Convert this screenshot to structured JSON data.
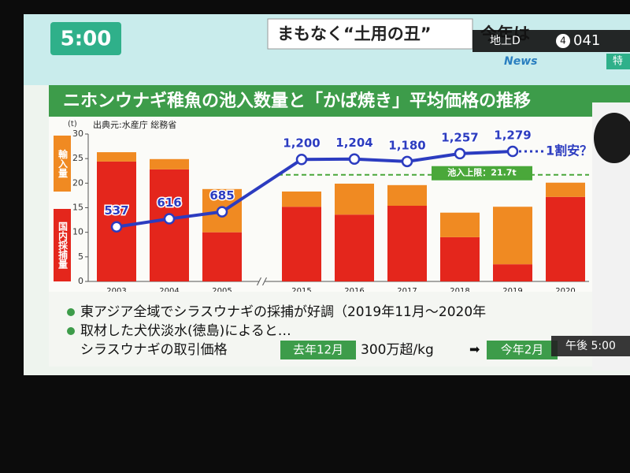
{
  "screen": {
    "clock": "5:00",
    "headline": "まもなく“土用の丑”",
    "headline_tail": "今年は",
    "channel": "地上D",
    "channel_number": "4",
    "channel_code": "041",
    "program": "News",
    "corner": "特",
    "time_badge": "午後 5:00"
  },
  "chart_data": {
    "type": "bar",
    "title": "ニホンウナギ稚魚の池入数量と「かば焼き」平均価格の推移",
    "source": "出典元:水産庁 総務省",
    "y_unit": "(t)",
    "categories": [
      "2003",
      "2004",
      "2005",
      "2015",
      "2016",
      "2017",
      "2018",
      "2019",
      "2020"
    ],
    "stacked": true,
    "series": [
      {
        "name": "国内採捕量",
        "color": "#e4261c",
        "values": [
          24.4,
          22.8,
          10.0,
          15.2,
          13.6,
          15.4,
          9.0,
          3.5,
          17.2
        ]
      },
      {
        "name": "輸入量",
        "color": "#f08a22",
        "values": [
          1.9,
          2.1,
          8.8,
          3.1,
          6.3,
          4.2,
          5.0,
          11.7,
          2.9
        ]
      },
      {
        "name": "かば焼き平均価格",
        "type": "line",
        "axis": "y2",
        "color": "#2c3cc0",
        "values": [
          537,
          616,
          685,
          1200,
          1204,
          1180,
          1257,
          1279,
          null
        ],
        "value_labels": [
          "537",
          "616",
          "685",
          "1,200",
          "1,204",
          "1,180",
          "1,257",
          "1,279",
          null
        ]
      }
    ],
    "ylim": [
      0,
      30
    ],
    "yticks": [
      0,
      5,
      10,
      15,
      20,
      25,
      30
    ],
    "y2lim": [
      0,
      1450
    ],
    "limit": {
      "value": 21.7,
      "label": "池入上限：21.7t",
      "color": "#4aa83a"
    },
    "annotation": "1割安？"
  },
  "notes": {
    "bullet1": "東アジア全域でシラスウナギの採捕が好調（2019年11月～2020年",
    "bullet2": "取材した犬伏淡水(徳島)によると…",
    "price_label": "シラスウナギの取引価格",
    "last_december": "去年12月",
    "price": "300万超/kg",
    "arrow": "➡",
    "this_february": "今年2月"
  }
}
